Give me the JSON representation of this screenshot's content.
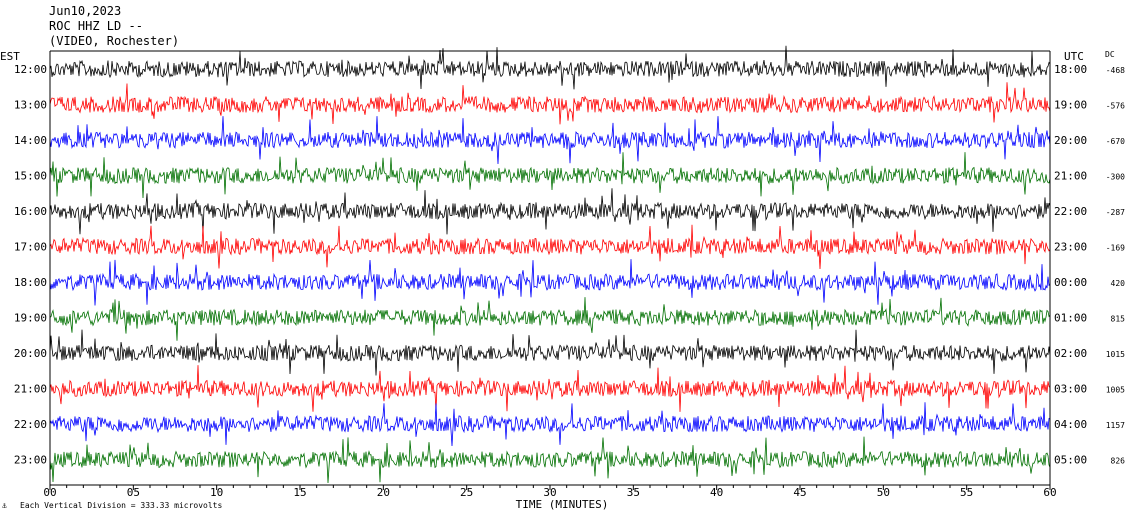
{
  "header": {
    "date": "Jun10,2023",
    "station": "ROC HHZ LD --",
    "location": "(VIDEO, Rochester)"
  },
  "axes": {
    "left_label": "EST",
    "right_label": "UTC",
    "dc_label": "DC",
    "x_title": "TIME (MINUTES)",
    "footer": "Each Vertical Division =  333.33 microvolts"
  },
  "colors": {
    "cycle": [
      "#000000",
      "#ff0000",
      "#0000ff",
      "#007000"
    ]
  },
  "chart_data": {
    "type": "line",
    "title": "ROC HHZ LD -- Jun10,2023",
    "xlabel": "TIME (MINUTES)",
    "xlim": [
      0,
      60
    ],
    "x_ticks": [
      "00",
      "05",
      "10",
      "15",
      "20",
      "25",
      "30",
      "35",
      "40",
      "45",
      "50",
      "55",
      "60"
    ],
    "rows": [
      {
        "est": "12:00",
        "utc": "18:00",
        "dc": "-468",
        "color": "black"
      },
      {
        "est": "13:00",
        "utc": "19:00",
        "dc": "-576",
        "color": "red"
      },
      {
        "est": "14:00",
        "utc": "20:00",
        "dc": "-670",
        "color": "blue"
      },
      {
        "est": "15:00",
        "utc": "21:00",
        "dc": "-300",
        "color": "green"
      },
      {
        "est": "16:00",
        "utc": "22:00",
        "dc": "-287",
        "color": "black"
      },
      {
        "est": "17:00",
        "utc": "23:00",
        "dc": "-169",
        "color": "red"
      },
      {
        "est": "18:00",
        "utc": "00:00",
        "dc": "420",
        "color": "blue"
      },
      {
        "est": "19:00",
        "utc": "01:00",
        "dc": "815",
        "color": "green"
      },
      {
        "est": "20:00",
        "utc": "02:00",
        "dc": "1015",
        "color": "black"
      },
      {
        "est": "21:00",
        "utc": "03:00",
        "dc": "1005",
        "color": "red"
      },
      {
        "est": "22:00",
        "utc": "04:00",
        "dc": "1157",
        "color": "blue"
      },
      {
        "est": "23:00",
        "utc": "05:00",
        "dc": "826",
        "color": "green"
      }
    ]
  }
}
